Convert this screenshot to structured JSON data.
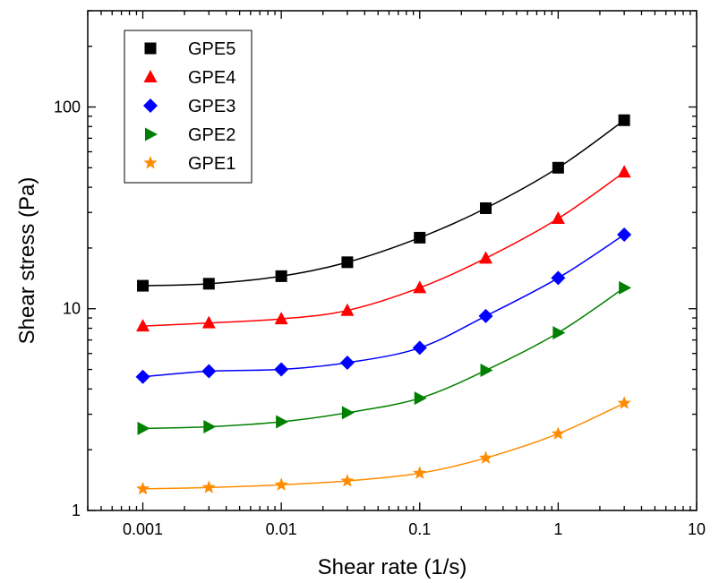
{
  "chart_data": {
    "type": "scatter",
    "title": "",
    "xlabel": "Shear rate (1/s)",
    "ylabel": "Shear stress (Pa)",
    "xscale": "log",
    "yscale": "log",
    "xlim": [
      0.0004,
      10
    ],
    "ylim": [
      1,
      300
    ],
    "xticks": [
      0.001,
      0.01,
      0.1,
      1,
      10
    ],
    "xtick_labels": [
      "0.001",
      "0.01",
      "0.1",
      "1",
      "10"
    ],
    "yticks": [
      1,
      10,
      100
    ],
    "ytick_labels": [
      "1",
      "10",
      "100"
    ],
    "grid": false,
    "legend_position": "top-left",
    "x": [
      0.001,
      0.003,
      0.01,
      0.03,
      0.1,
      0.3,
      1,
      3
    ],
    "series": [
      {
        "name": "GPE5",
        "marker": "square",
        "color": "#000000",
        "values": [
          13,
          13.3,
          14.5,
          17.0,
          22.5,
          31.5,
          50,
          86
        ]
      },
      {
        "name": "GPE4",
        "marker": "triangle-up",
        "color": "#ff0000",
        "values": [
          8.2,
          8.5,
          8.9,
          9.8,
          12.7,
          17.8,
          28,
          47.5
        ]
      },
      {
        "name": "GPE3",
        "marker": "diamond",
        "color": "#0000ff",
        "values": [
          4.6,
          4.9,
          5.0,
          5.4,
          6.4,
          9.2,
          14.2,
          23.3
        ]
      },
      {
        "name": "GPE2",
        "marker": "triangle-right",
        "color": "#008000",
        "values": [
          2.55,
          2.6,
          2.75,
          3.05,
          3.6,
          4.95,
          7.6,
          12.7
        ]
      },
      {
        "name": "GPE1",
        "marker": "star",
        "color": "#ff8c00",
        "values": [
          1.28,
          1.3,
          1.34,
          1.4,
          1.53,
          1.82,
          2.4,
          3.4
        ]
      }
    ]
  }
}
